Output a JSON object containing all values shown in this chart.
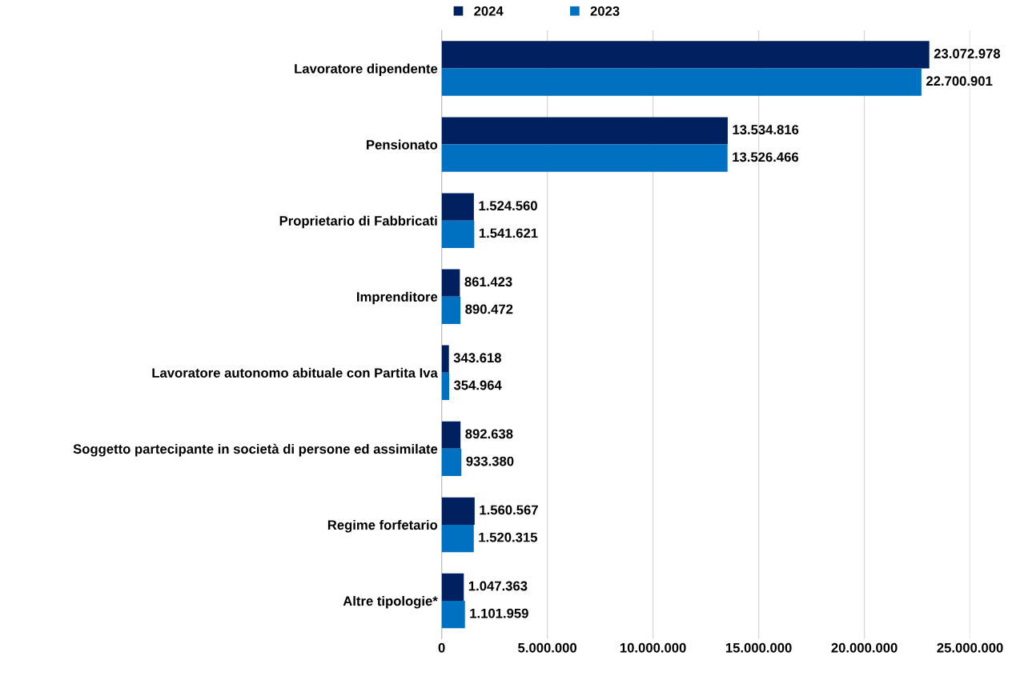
{
  "chart_data": {
    "type": "bar",
    "orientation": "horizontal",
    "categories": [
      "Lavoratore dipendente",
      "Pensionato",
      "Proprietario di Fabbricati",
      "Imprenditore",
      "Lavoratore autonomo abituale con Partita Iva",
      "Soggetto partecipante in società di persone ed assimilate",
      "Regime forfetario",
      "Altre tipologie*"
    ],
    "series": [
      {
        "name": "2024",
        "color": "#002060",
        "values": [
          23072978,
          13534816,
          1524560,
          861423,
          343618,
          892638,
          1560567,
          1047363
        ],
        "value_labels": [
          "23.072.978",
          "13.534.816",
          "1.524.560",
          "861.423",
          "343.618",
          "892.638",
          "1.560.567",
          "1.047.363"
        ]
      },
      {
        "name": "2023",
        "color": "#0070c0",
        "values": [
          22700901,
          13526466,
          1541621,
          890472,
          354964,
          933380,
          1520315,
          1101959
        ],
        "value_labels": [
          "22.700.901",
          "13.526.466",
          "1.541.621",
          "890.472",
          "354.964",
          "933.380",
          "1.520.315",
          "1.101.959"
        ]
      }
    ],
    "xlim": [
      0,
      25000000
    ],
    "xticks": [
      0,
      {
        "value": 5000000,
        "label": "5.000.000"
      },
      {
        "value": 10000000,
        "label": "10.000.000"
      },
      {
        "value": 15000000,
        "label": "15.000.000"
      },
      {
        "value": 20000000,
        "label": "20.000.000"
      },
      {
        "value": 25000000,
        "label": "25.000.000"
      }
    ],
    "grid": "x",
    "legend": "top"
  }
}
